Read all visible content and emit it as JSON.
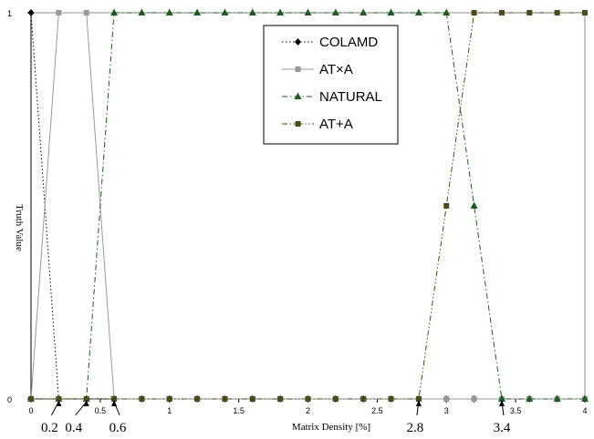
{
  "chart_data": {
    "type": "line",
    "xlabel": "Matrix Density [%]",
    "ylabel": "Truth Value",
    "xlim": [
      0,
      4
    ],
    "ylim": [
      0,
      1
    ],
    "x_ticks": [
      "0",
      "0.5",
      "1",
      "1.5",
      "2",
      "2.5",
      "3",
      "3.5",
      "4"
    ],
    "y_ticks": [
      "0",
      "1"
    ],
    "grid": false,
    "legend_position": "top-center",
    "annotations": [
      {
        "text": "0.2",
        "x": 0.2
      },
      {
        "text": "0.4",
        "x": 0.4
      },
      {
        "text": "0.6",
        "x": 0.6
      },
      {
        "text": "2.8",
        "x": 2.8
      },
      {
        "text": "3.4",
        "x": 3.4
      }
    ],
    "series": [
      {
        "name": "COLAMD",
        "marker": "diamond",
        "dash": "dotted",
        "color": "#000000",
        "x": [
          0,
          0.2,
          0.4,
          0.6,
          0.8,
          1.0,
          1.2,
          1.4,
          1.6,
          1.8,
          2.0,
          2.2,
          2.4,
          2.6,
          2.8,
          3.0,
          3.2,
          3.4,
          3.6,
          3.8,
          4.0
        ],
        "y": [
          1,
          0,
          0,
          0,
          0,
          0,
          0,
          0,
          0,
          0,
          0,
          0,
          0,
          0,
          0,
          0,
          0,
          0,
          0,
          0,
          0
        ]
      },
      {
        "name": "AT×A",
        "marker": "square",
        "dash": "solid",
        "color": "#999999",
        "x": [
          0,
          0.2,
          0.4,
          0.6,
          0.8,
          1.0,
          1.2,
          1.4,
          1.6,
          1.8,
          2.0,
          2.2,
          2.4,
          2.6,
          2.8,
          3.0,
          3.2,
          3.4,
          3.6,
          3.8,
          4.0
        ],
        "y": [
          0,
          1,
          1,
          0,
          0,
          0,
          0,
          0,
          0,
          0,
          0,
          0,
          0,
          0,
          0,
          0,
          0,
          0,
          0,
          0,
          0
        ]
      },
      {
        "name": "NATURAL",
        "marker": "triangle",
        "dash": "dashdot",
        "color": "#1f5a1f",
        "x": [
          0,
          0.2,
          0.4,
          0.6,
          0.8,
          1.0,
          1.2,
          1.4,
          1.6,
          1.8,
          2.0,
          2.2,
          2.4,
          2.6,
          2.8,
          3.0,
          3.2,
          3.4,
          3.6,
          3.8,
          4.0
        ],
        "y": [
          0,
          0,
          0,
          1,
          1,
          1,
          1,
          1,
          1,
          1,
          1,
          1,
          1,
          1,
          1,
          1,
          0.5,
          0,
          0,
          0,
          0
        ]
      },
      {
        "name": "AT+A",
        "marker": "square",
        "dash": "dashdotdot",
        "color": "#4a4a1a",
        "x": [
          0,
          0.2,
          0.4,
          0.6,
          0.8,
          1.0,
          1.2,
          1.4,
          1.6,
          1.8,
          2.0,
          2.2,
          2.4,
          2.6,
          2.8,
          3.0,
          3.2,
          3.4,
          3.6,
          3.8,
          4.0
        ],
        "y": [
          0,
          0,
          0,
          0,
          0,
          0,
          0,
          0,
          0,
          0,
          0,
          0,
          0,
          0,
          0,
          0.5,
          1,
          1,
          1,
          1,
          1
        ]
      }
    ]
  }
}
